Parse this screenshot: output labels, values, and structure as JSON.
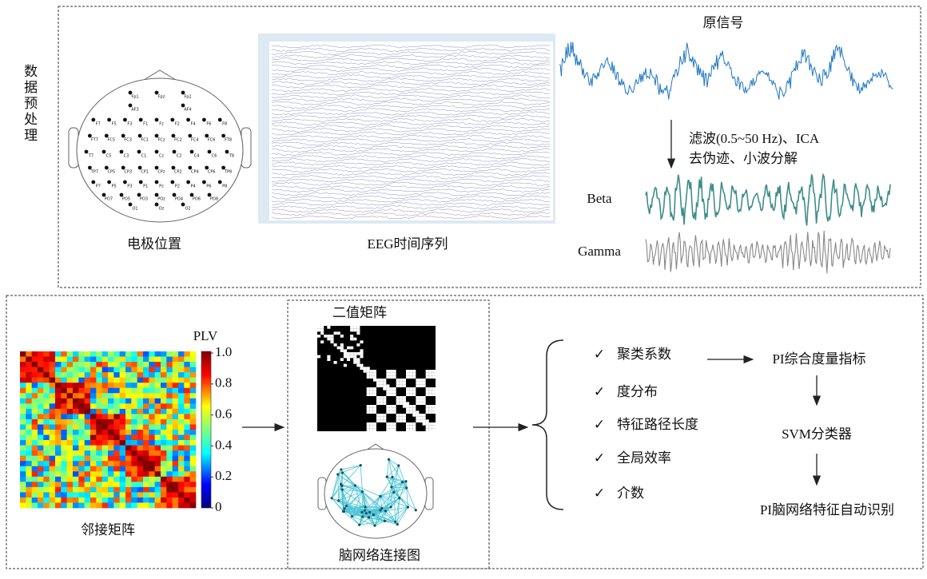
{
  "side_label": "数据预处理",
  "preprocessing": {
    "electrode_caption": "电极位置",
    "eeg_caption": "EEG时间序列",
    "raw_title": "原信号",
    "filter_line1": "滤波(0.5~50 Hz)、ICA",
    "filter_line2": "去伪迹、小波分解",
    "beta": "Beta",
    "gamma": "Gamma",
    "electrodes": [
      [
        "Fp1",
        "Fpz",
        "Fp2"
      ],
      [
        "AF3",
        "AF4"
      ],
      [
        "F7",
        "F5",
        "F3",
        "F1",
        "Fz",
        "F2",
        "F4",
        "F6",
        "F8"
      ],
      [
        "FT7",
        "FC5",
        "FC3",
        "FC1",
        "FCz",
        "FC2",
        "FC4",
        "FC6",
        "FT8"
      ],
      [
        "T7",
        "C5",
        "C3",
        "C1",
        "Cz",
        "C2",
        "C4",
        "C6",
        "T8"
      ],
      [
        "TP7",
        "CP5",
        "CP3",
        "CP1",
        "CPz",
        "CP2",
        "CP4",
        "CP6",
        "TP8"
      ],
      [
        "P7",
        "P5",
        "P3",
        "P1",
        "Pz",
        "P2",
        "P4",
        "P6",
        "P8"
      ],
      [
        "PO7",
        "PO5",
        "PO3",
        "POz",
        "PO4",
        "PO6",
        "PO8"
      ],
      [
        "O1",
        "Oz",
        "O2"
      ]
    ]
  },
  "network": {
    "colorbar_label": "PLV",
    "colorbar_ticks": [
      "1.0",
      "0.8",
      "0.6",
      "0.4",
      "0.2",
      "0"
    ],
    "adjacency_caption": "邻接矩阵",
    "binary_title": "二值矩阵",
    "brain_caption": "脑网络连接图",
    "features": [
      "聚类系数",
      "度分布",
      "特征路径长度",
      "全局效率",
      "介数"
    ],
    "check": "✓",
    "pipeline": [
      "PI综合度量指标",
      "SVM分类器",
      "PI脑网络特征自动识别"
    ]
  }
}
